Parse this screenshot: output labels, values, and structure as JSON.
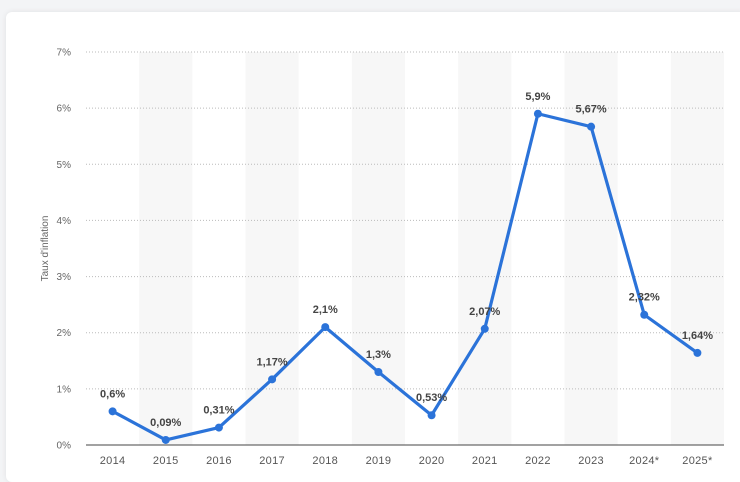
{
  "chart_data": {
    "type": "line",
    "title": "",
    "xlabel": "",
    "ylabel": "Taux d'inflation",
    "categories": [
      "2014",
      "2015",
      "2016",
      "2017",
      "2018",
      "2019",
      "2020",
      "2021",
      "2022",
      "2023",
      "2024*",
      "2025*"
    ],
    "values": [
      0.6,
      0.09,
      0.31,
      1.17,
      2.1,
      1.3,
      0.53,
      2.07,
      5.9,
      5.67,
      2.32,
      1.64
    ],
    "value_labels": [
      "0,6%",
      "0,09%",
      "0,31%",
      "1,17%",
      "2,1%",
      "1,3%",
      "0,53%",
      "2,07%",
      "5,9%",
      "5,67%",
      "2,32%",
      "1,64%"
    ],
    "ylim": [
      0,
      7
    ],
    "yticks": [
      0,
      1,
      2,
      3,
      4,
      5,
      6,
      7
    ],
    "ytick_labels": [
      "0%",
      "1%",
      "2%",
      "3%",
      "4%",
      "5%",
      "6%",
      "7%"
    ],
    "grid": true,
    "legend": "none",
    "colors": {
      "line": "#2b73d9",
      "band": "#f7f7f7",
      "grid": "#bbbbbb",
      "axis": "#444444"
    }
  }
}
